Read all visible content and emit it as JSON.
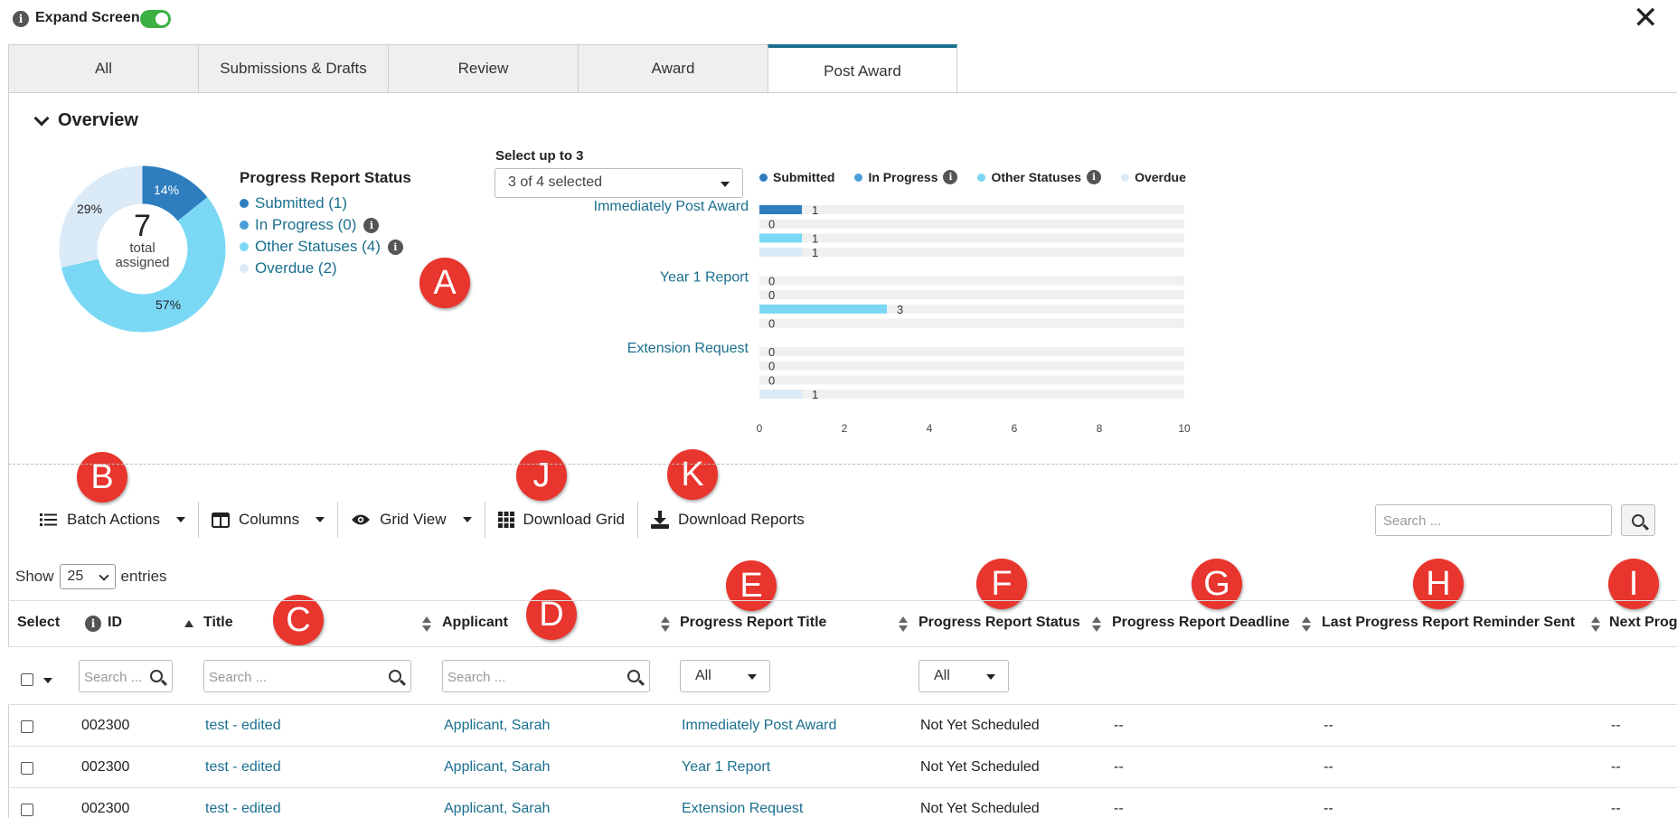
{
  "topbar": {
    "expand_label": "Expand Screen",
    "expand_on": true,
    "close": "✕"
  },
  "tabs": [
    {
      "label": "All",
      "active": false
    },
    {
      "label": "Submissions & Drafts",
      "active": false
    },
    {
      "label": "Review",
      "active": false
    },
    {
      "label": "Award",
      "active": false
    },
    {
      "label": "Post Award",
      "active": true
    }
  ],
  "overview": {
    "title": "Overview",
    "donut": {
      "total": "7",
      "total_label_1": "total",
      "total_label_2": "assigned",
      "slices": [
        {
          "name": "Submitted",
          "value": 1,
          "pct_label": "14%",
          "color": "#2e7dbf"
        },
        {
          "name": "In Progress",
          "value": 0,
          "pct_label": "",
          "color": "#4a9fd8"
        },
        {
          "name": "Other Statuses",
          "value": 4,
          "pct_label": "57%",
          "color": "#7ad8f5"
        },
        {
          "name": "Overdue",
          "value": 2,
          "pct_label": "29%",
          "color": "#dbeaf7"
        }
      ]
    },
    "status_legend": {
      "title": "Progress Report Status",
      "items": [
        {
          "label": "Submitted (1)",
          "color": "#2e7dbf",
          "info": false
        },
        {
          "label": "In Progress (0)",
          "color": "#4a9fd8",
          "info": true
        },
        {
          "label": "Other Statuses (4)",
          "color": "#7ad8f5",
          "info": true
        },
        {
          "label": "Overdue (2)",
          "color": "#dbeaf7",
          "info": false
        }
      ]
    },
    "selector": {
      "label": "Select up to 3",
      "value": "3 of 4 selected"
    }
  },
  "chart_data": {
    "type": "bar",
    "orientation": "horizontal",
    "categories": [
      "Immediately Post Award",
      "Year 1 Report",
      "Extension Request"
    ],
    "series": [
      {
        "name": "Submitted",
        "color": "#2e7dbf",
        "values": [
          1,
          0,
          0
        ]
      },
      {
        "name": "In Progress",
        "color": "#4a9fd8",
        "values": [
          0,
          0,
          0
        ]
      },
      {
        "name": "Other Statuses",
        "color": "#7ad8f5",
        "values": [
          1,
          3,
          0
        ]
      },
      {
        "name": "Overdue",
        "color": "#dbeaf7",
        "values": [
          1,
          0,
          1
        ]
      }
    ],
    "xlim": [
      0,
      10
    ],
    "xticks": [
      0,
      2,
      4,
      6,
      8,
      10
    ],
    "legend": "top",
    "legend_info": [
      false,
      true,
      true,
      false
    ]
  },
  "callouts": {
    "A": "A",
    "B": "B",
    "C": "C",
    "D": "D",
    "E": "E",
    "F": "F",
    "G": "G",
    "H": "H",
    "I": "I",
    "J": "J",
    "K": "K"
  },
  "toolbar": {
    "batch_actions": "Batch Actions",
    "columns": "Columns",
    "grid_view": "Grid View",
    "download_grid": "Download Grid",
    "download_reports": "Download Reports",
    "search_placeholder": "Search ..."
  },
  "entries": {
    "show": "Show",
    "value": "25",
    "suffix": "entries"
  },
  "table": {
    "headers": {
      "select": "Select",
      "id": "ID",
      "title": "Title",
      "applicant": "Applicant",
      "pr_title": "Progress Report Title",
      "pr_status": "Progress Report Status",
      "pr_deadline": "Progress Report Deadline",
      "last_reminder": "Last Progress Report Reminder Sent",
      "next": "Next Prog"
    },
    "filters": {
      "search_short": "Search ...",
      "search": "Search ...",
      "all": "All"
    },
    "rows": [
      {
        "id": "002300",
        "title": "test - edited",
        "applicant": "Applicant, Sarah",
        "pr_title": "Immediately Post Award",
        "pr_status": "Not Yet Scheduled",
        "deadline": "--",
        "reminder": "--",
        "next": "--"
      },
      {
        "id": "002300",
        "title": "test - edited",
        "applicant": "Applicant, Sarah",
        "pr_title": "Year 1 Report",
        "pr_status": "Not Yet Scheduled",
        "deadline": "--",
        "reminder": "--",
        "next": "--"
      },
      {
        "id": "002300",
        "title": "test - edited",
        "applicant": "Applicant, Sarah",
        "pr_title": "Extension Request",
        "pr_status": "Not Yet Scheduled",
        "deadline": "--",
        "reminder": "--",
        "next": "--"
      }
    ]
  }
}
